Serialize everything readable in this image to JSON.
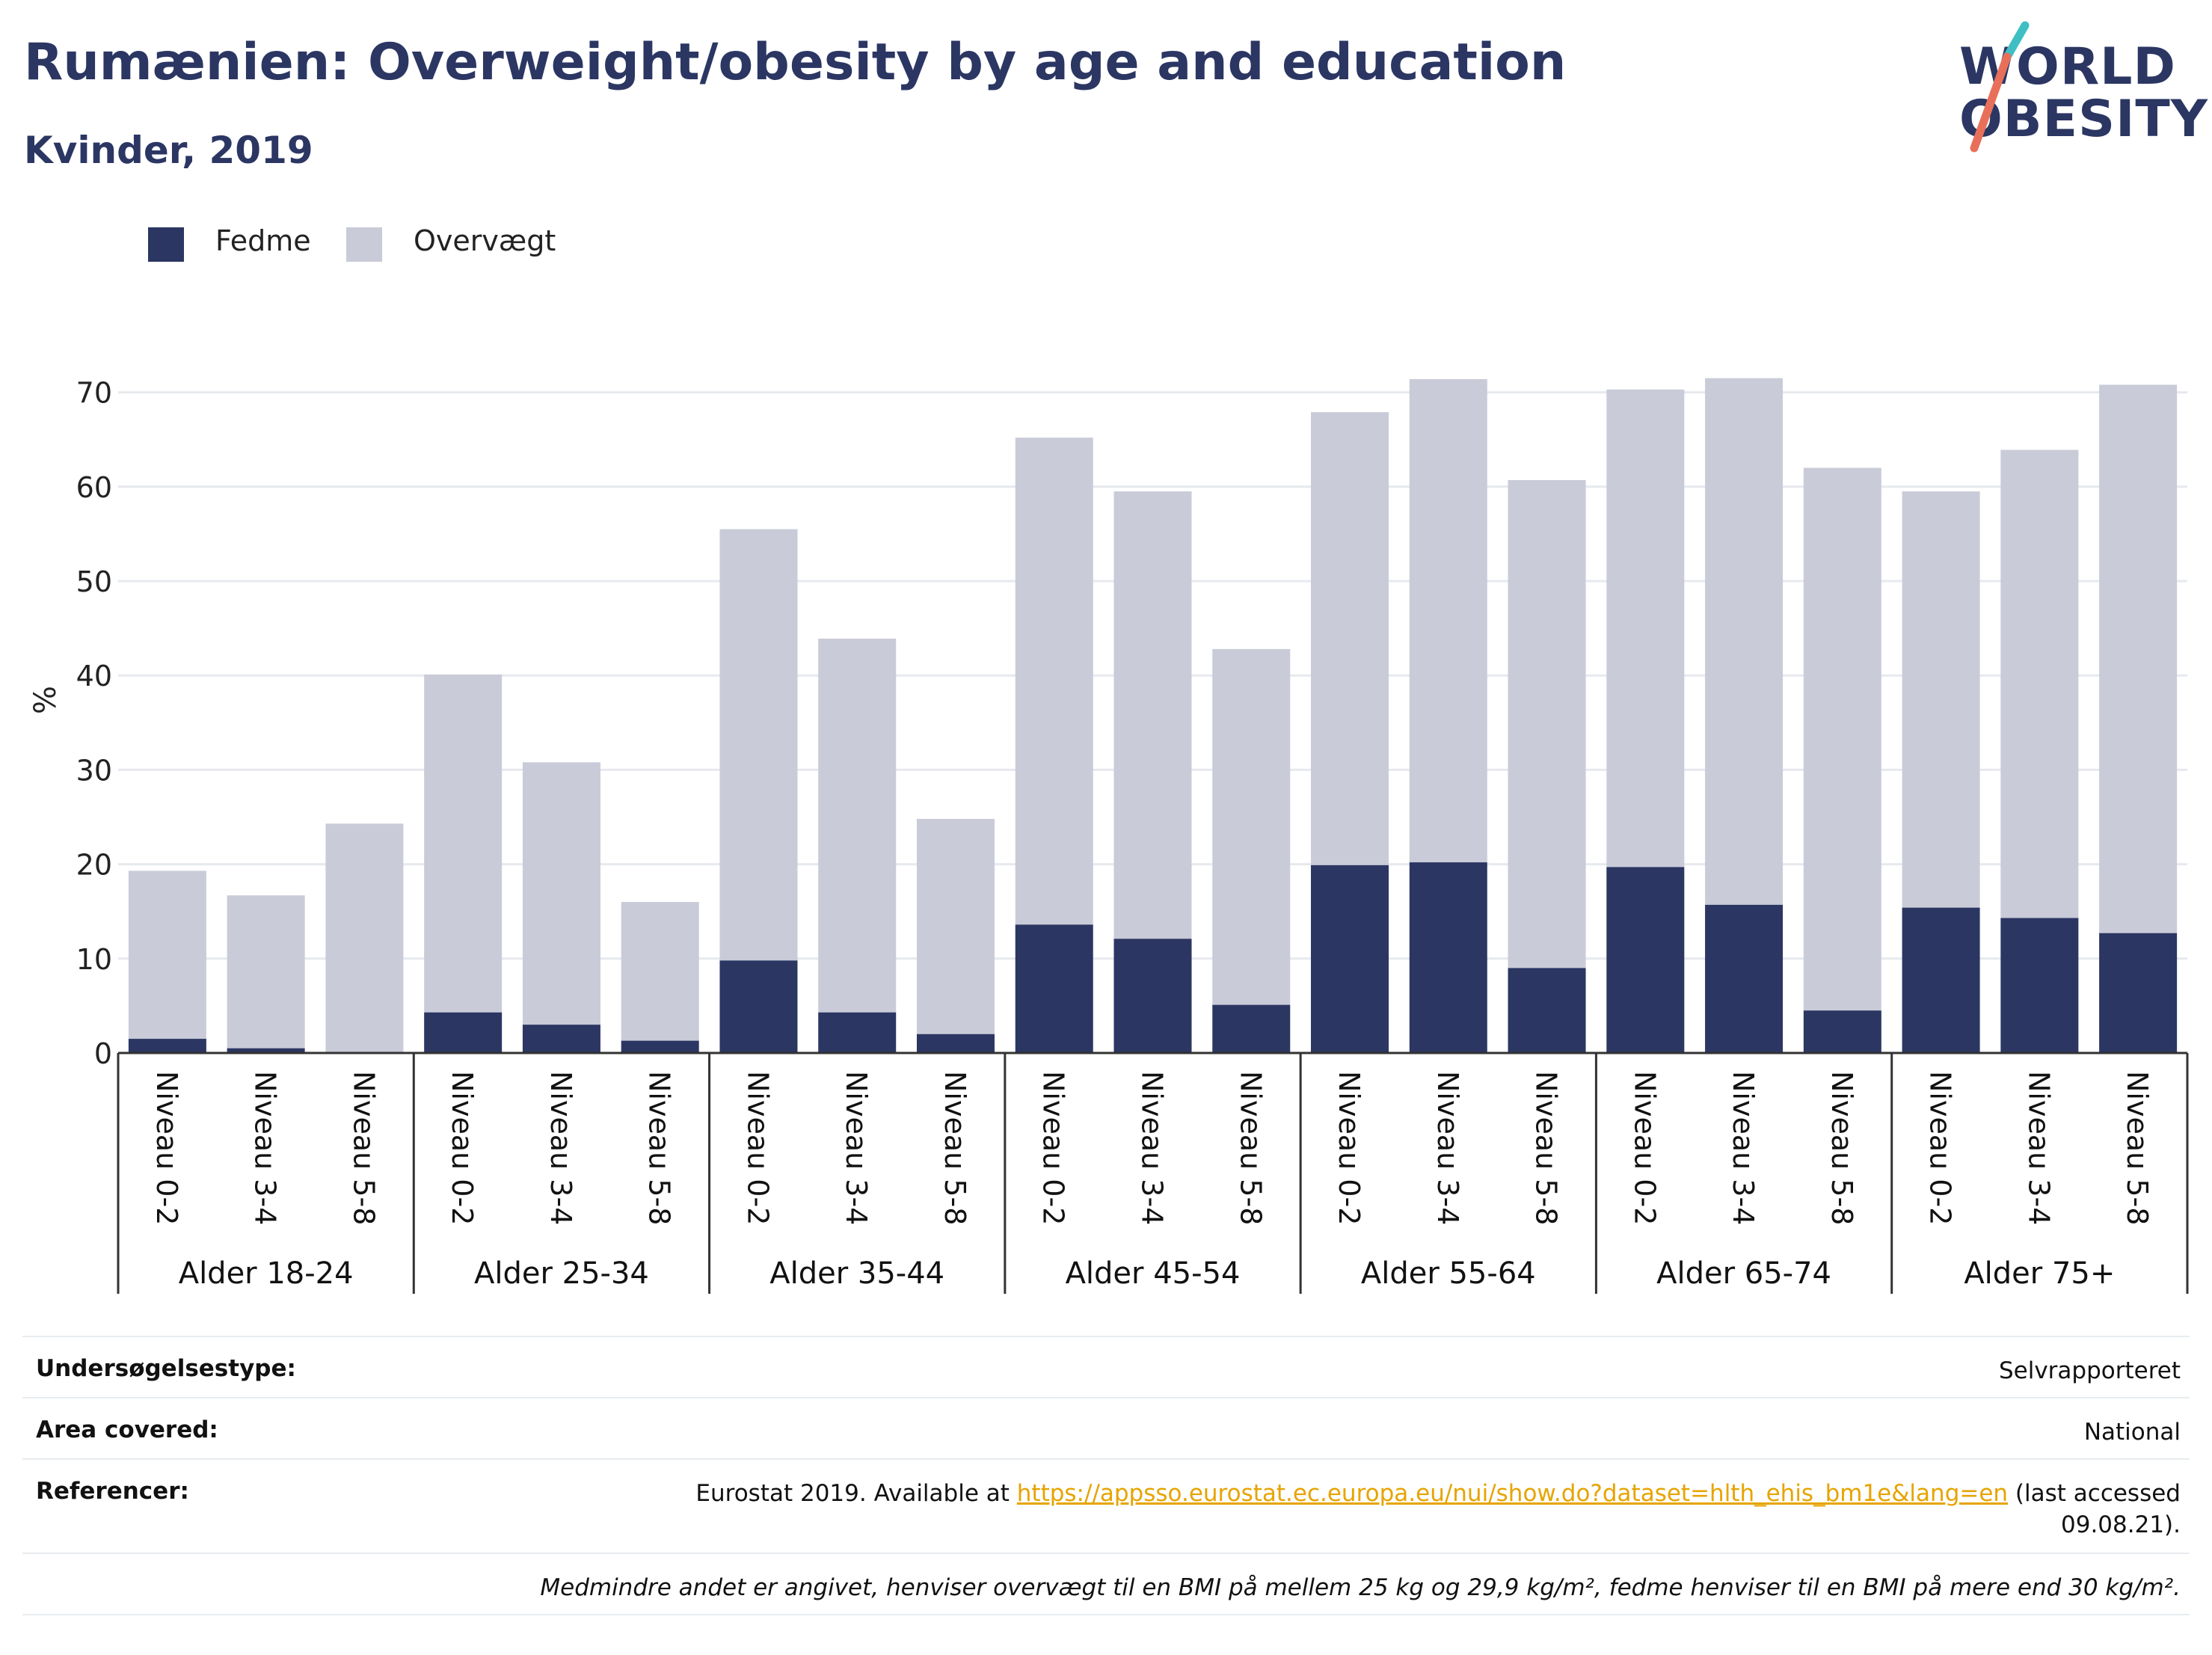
{
  "title": "Rumænien: Overweight/obesity by age and education",
  "subtitle": "Kvinder, 2019",
  "logo": {
    "line1": "WORLD",
    "line2": "OBESITY"
  },
  "colors": {
    "obesity": "#2b3663",
    "overweight": "#c9cbd8",
    "text": "#2b3663",
    "link": "#e6a400",
    "logo_teal": "#3fbfc4",
    "logo_coral": "#e8705a"
  },
  "legend": [
    {
      "label": "Fedme",
      "color": "#2b3663"
    },
    {
      "label": "Overvægt",
      "color": "#c9cbd8"
    }
  ],
  "chart_data": {
    "type": "bar",
    "stacked": true,
    "ylabel": "%",
    "ylim": [
      0,
      75
    ],
    "yticks": [
      0,
      10,
      20,
      30,
      40,
      50,
      60,
      70
    ],
    "grid": true,
    "legend_position": "top-left",
    "groups": [
      "Alder 18-24",
      "Alder 25-34",
      "Alder 35-44",
      "Alder 45-54",
      "Alder 55-64",
      "Alder 65-74",
      "Alder 75+"
    ],
    "subcategories": [
      "Niveau 0-2",
      "Niveau 3-4",
      "Niveau 5-8"
    ],
    "series": [
      {
        "name": "Fedme",
        "values": [
          1.5,
          0.5,
          0.0,
          4.3,
          3.0,
          1.3,
          9.8,
          4.3,
          2.0,
          13.6,
          12.1,
          5.1,
          19.9,
          20.2,
          9.0,
          19.7,
          15.7,
          4.5,
          15.4,
          14.3,
          12.7
        ]
      },
      {
        "name": "Overvægt",
        "values": [
          17.8,
          16.2,
          24.3,
          35.8,
          27.8,
          14.7,
          45.7,
          39.6,
          22.8,
          51.6,
          47.4,
          37.7,
          48.0,
          51.2,
          51.7,
          50.6,
          55.8,
          57.5,
          44.1,
          49.6,
          58.1
        ]
      }
    ]
  },
  "footer": {
    "rows": [
      {
        "key": "Undersøgelsestype:",
        "value": "Selvrapporteret"
      },
      {
        "key": "Area covered:",
        "value": "National"
      },
      {
        "key": "Referencer:",
        "value_prefix": "Eurostat 2019. Available at ",
        "link": "https://appsso.eurostat.ec.europa.eu/nui/show.do?dataset=hlth_ehis_bm1e&lang=en",
        "value_suffix_1": " (last accessed",
        "value_suffix_2": "09.08.21)."
      }
    ],
    "note": "Medmindre andet er angivet, henviser overvægt til en BMI på mellem 25 kg og 29,9 kg/m², fedme henviser til en BMI på mere end 30 kg/m²."
  }
}
